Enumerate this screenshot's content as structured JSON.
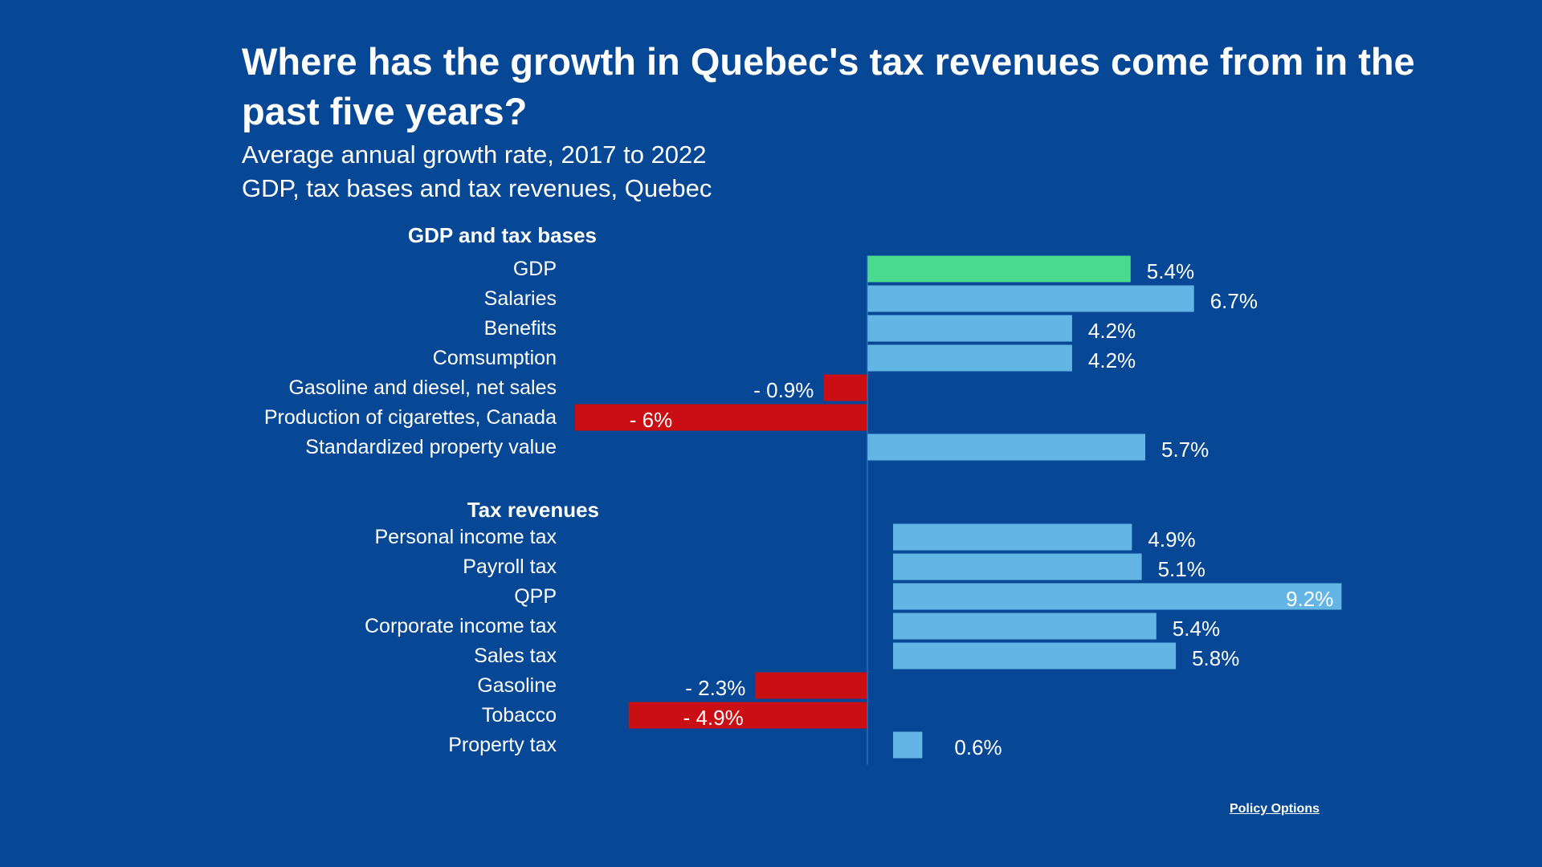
{
  "title": "Where has the growth in Quebec's tax revenues come from in the past five years?",
  "subtitle_line1": "Average annual growth rate, 2017 to 2022",
  "subtitle_line2": "GDP, tax bases and tax revenues, Quebec",
  "source": "Policy Options",
  "colors": {
    "background": "#064796",
    "positive": "#62b5e5",
    "negative": "#c90e14",
    "gdp": "#49d98f",
    "text": "#ffffff"
  },
  "chart_data": {
    "type": "bar",
    "orientation": "horizontal",
    "unit": "%",
    "groups": [
      {
        "name": "GDP and tax bases",
        "categories": [
          "GDP",
          "Salaries",
          "Benefits",
          "Comsumption",
          "Gasoline and diesel, net sales",
          "Production of cigarettes, Canada",
          "Standardized property value"
        ],
        "values": [
          5.4,
          6.7,
          4.2,
          4.2,
          -0.9,
          -6,
          5.7
        ],
        "labels": [
          "5.4%",
          "6.7%",
          "4.2%",
          "4.2%",
          "- 0.9%",
          "- 6%",
          "5.7%"
        ]
      },
      {
        "name": "Tax revenues",
        "categories": [
          "Personal income tax",
          "Payroll tax",
          "QPP",
          "Corporate income tax",
          "Sales tax",
          "Gasoline",
          "Tobacco",
          "Property tax"
        ],
        "values": [
          4.9,
          5.1,
          9.2,
          5.4,
          5.8,
          -2.3,
          -4.9,
          0.6
        ],
        "labels": [
          "4.9%",
          "5.1%",
          "9.2%",
          "5.4%",
          "5.8%",
          "- 2.3%",
          "- 4.9%",
          "0.6%"
        ]
      }
    ]
  }
}
